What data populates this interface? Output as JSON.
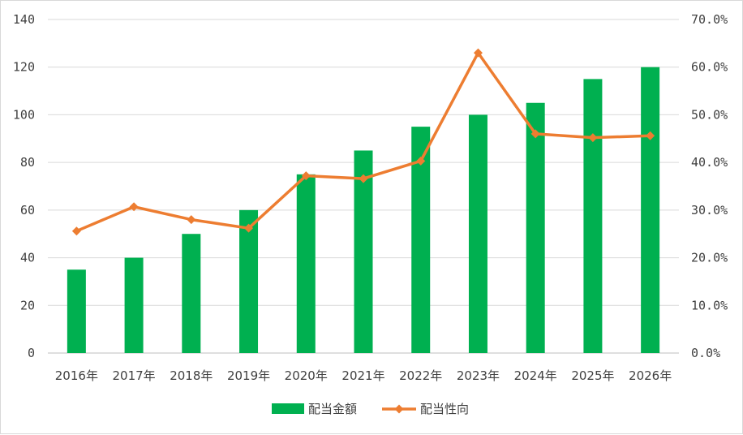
{
  "chart_data": {
    "type": "bar",
    "categories": [
      "2016年",
      "2017年",
      "2018年",
      "2019年",
      "2020年",
      "2021年",
      "2022年",
      "2023年",
      "2024年",
      "2025年",
      "2026年"
    ],
    "series": [
      {
        "name": "配当金額",
        "type": "bar",
        "axis": "left",
        "color": "#00b050",
        "values": [
          35,
          40,
          50,
          60,
          75,
          85,
          95,
          100,
          105,
          115,
          120
        ]
      },
      {
        "name": "配当性向",
        "type": "line",
        "axis": "right",
        "color": "#ed7d31",
        "marker": "diamond",
        "values": [
          0.256,
          0.307,
          0.28,
          0.262,
          0.372,
          0.366,
          0.403,
          0.63,
          0.46,
          0.452,
          0.456
        ]
      }
    ],
    "left_axis": {
      "ylim": [
        0,
        140
      ],
      "ticks": [
        0,
        20,
        40,
        60,
        80,
        100,
        120,
        140
      ],
      "tick_labels": [
        "0",
        "20",
        "40",
        "60",
        "80",
        "100",
        "120",
        "140"
      ]
    },
    "right_axis": {
      "ylim": [
        0,
        0.7
      ],
      "ticks": [
        0,
        0.1,
        0.2,
        0.3,
        0.4,
        0.5,
        0.6,
        0.7
      ],
      "tick_labels": [
        "0.0%",
        "10.0%",
        "20.0%",
        "30.0%",
        "40.0%",
        "50.0%",
        "60.0%",
        "70.0%"
      ]
    },
    "grid": true,
    "legend": "bottom-center",
    "title": "",
    "xlabel": "",
    "ylabel": ""
  }
}
